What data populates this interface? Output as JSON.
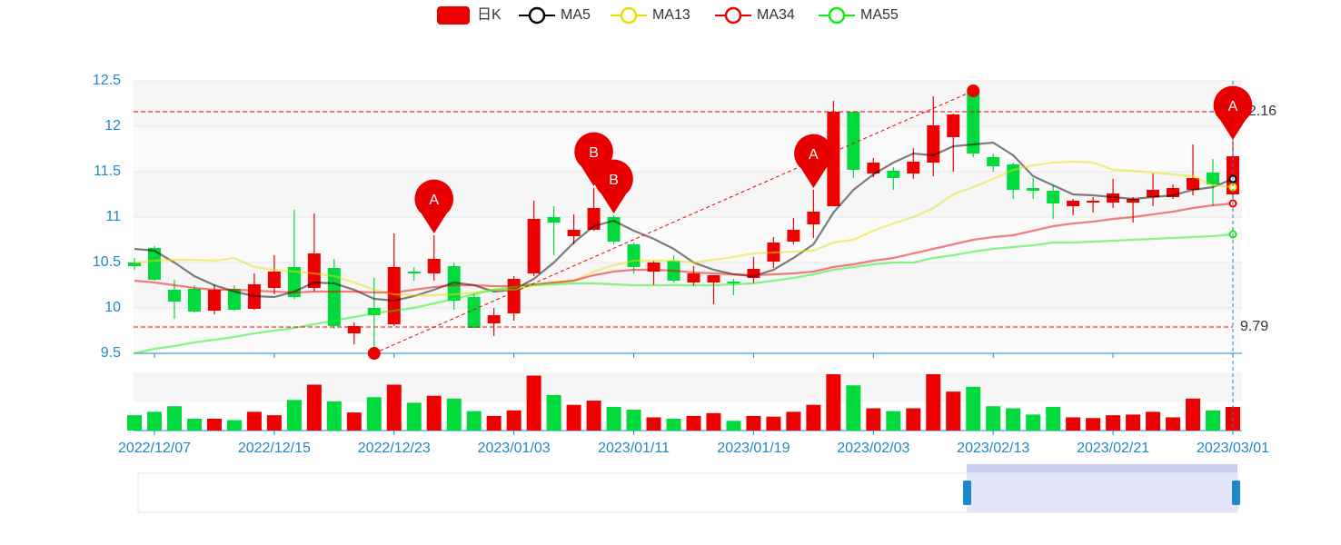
{
  "chart_data": {
    "type": "candlestick",
    "categories": [
      null,
      "2022/12/07",
      null,
      null,
      null,
      null,
      null,
      "2022/12/15",
      null,
      null,
      null,
      null,
      null,
      "2022/12/23",
      null,
      null,
      null,
      null,
      null,
      "2023/01/03",
      null,
      null,
      null,
      null,
      null,
      "2023/01/11",
      null,
      null,
      null,
      null,
      null,
      "2023/01/19",
      null,
      null,
      null,
      null,
      null,
      "2023/02/03",
      null,
      null,
      null,
      null,
      null,
      "2023/02/13",
      null,
      null,
      null,
      null,
      null,
      "2023/02/21",
      null,
      null,
      null,
      null,
      null,
      "2023/03/01"
    ],
    "candles": {
      "name": "日K",
      "up_color": "#ec0000",
      "down_color": "#00da3c",
      "open": [
        10.5,
        10.66,
        10.2,
        10.21,
        9.97,
        10.21,
        9.99,
        10.22,
        10.45,
        10.22,
        10.44,
        9.72,
        10.0,
        9.82,
        10.4,
        10.38,
        10.46,
        10.12,
        9.83,
        9.94,
        10.38,
        11.0,
        10.79,
        10.86,
        11.0,
        10.7,
        10.4,
        10.52,
        10.28,
        10.28,
        10.29,
        10.33,
        10.51,
        10.73,
        10.92,
        11.12,
        12.16,
        11.48,
        11.51,
        11.48,
        11.6,
        11.88,
        12.38,
        11.66,
        11.58,
        11.32,
        11.29,
        11.12,
        11.16,
        11.16,
        11.16,
        11.22,
        11.22,
        11.3,
        11.49,
        11.25
      ],
      "close": [
        10.46,
        10.31,
        10.07,
        9.96,
        10.2,
        9.98,
        10.26,
        10.4,
        10.12,
        10.6,
        9.8,
        9.8,
        9.92,
        10.45,
        10.38,
        10.54,
        10.08,
        9.78,
        9.92,
        10.32,
        10.98,
        10.94,
        10.86,
        11.1,
        10.73,
        10.45,
        10.5,
        10.3,
        10.38,
        10.36,
        10.27,
        10.43,
        10.72,
        10.86,
        11.06,
        12.16,
        11.52,
        11.6,
        11.43,
        11.61,
        12.01,
        12.13,
        11.7,
        11.56,
        11.3,
        11.29,
        11.15,
        11.18,
        11.18,
        11.26,
        11.2,
        11.3,
        11.32,
        11.43,
        11.36,
        11.67
      ],
      "low": [
        10.42,
        10.3,
        9.88,
        9.95,
        9.93,
        9.97,
        9.98,
        10.15,
        10.1,
        10.18,
        9.77,
        9.6,
        9.5,
        9.8,
        10.3,
        10.3,
        9.98,
        9.78,
        9.69,
        9.86,
        10.35,
        10.58,
        10.7,
        10.85,
        10.7,
        10.38,
        10.25,
        10.28,
        10.24,
        10.04,
        10.14,
        10.27,
        10.44,
        10.7,
        10.77,
        11.12,
        11.43,
        11.44,
        11.3,
        11.42,
        11.45,
        11.5,
        11.66,
        11.5,
        11.2,
        11.2,
        10.98,
        11.02,
        11.05,
        11.1,
        10.94,
        11.12,
        11.2,
        11.24,
        11.12,
        11.2
      ],
      "high": [
        10.55,
        10.68,
        10.31,
        10.25,
        10.26,
        10.25,
        10.38,
        10.58,
        11.08,
        11.04,
        10.54,
        9.84,
        10.33,
        10.82,
        10.45,
        10.8,
        10.5,
        10.16,
        10.0,
        10.35,
        11.18,
        11.12,
        11.03,
        11.32,
        11.02,
        10.72,
        10.52,
        10.58,
        10.46,
        10.36,
        10.32,
        10.56,
        10.78,
        10.99,
        11.3,
        12.28,
        12.16,
        11.65,
        11.55,
        11.76,
        12.33,
        12.14,
        12.39,
        11.7,
        11.6,
        11.43,
        11.35,
        11.2,
        11.22,
        11.42,
        11.22,
        11.48,
        11.36,
        11.8,
        11.64,
        11.83
      ]
    },
    "volume": [
      22,
      27,
      35,
      17,
      17,
      15,
      27,
      22,
      44,
      66,
      42,
      26,
      48,
      66,
      40,
      50,
      46,
      28,
      21,
      29,
      79,
      51,
      37,
      43,
      34,
      30,
      19,
      17,
      21,
      25,
      14,
      21,
      20,
      27,
      37,
      81,
      65,
      32,
      28,
      32,
      81,
      56,
      63,
      35,
      32,
      23,
      34,
      19,
      18,
      22,
      23,
      27,
      19,
      46,
      29,
      34
    ],
    "lines": [
      {
        "name": "MA5",
        "color": "#000000",
        "values": [
          10.65,
          10.63,
          10.5,
          10.35,
          10.25,
          10.18,
          10.13,
          10.12,
          10.18,
          10.28,
          10.27,
          10.2,
          10.1,
          10.08,
          10.13,
          10.2,
          10.28,
          10.25,
          10.18,
          10.2,
          10.32,
          10.5,
          10.72,
          10.9,
          10.96,
          10.85,
          10.76,
          10.65,
          10.5,
          10.42,
          10.37,
          10.35,
          10.42,
          10.55,
          10.7,
          11.05,
          11.3,
          11.47,
          11.6,
          11.7,
          11.68,
          11.78,
          11.8,
          11.82,
          11.68,
          11.45,
          11.35,
          11.25,
          11.24,
          11.22,
          11.2,
          11.22,
          11.24,
          11.3,
          11.33,
          11.42
        ]
      },
      {
        "name": "MA13",
        "color": "#e6e000",
        "values": [
          10.5,
          10.52,
          10.53,
          10.53,
          10.52,
          10.55,
          10.45,
          10.42,
          10.4,
          10.38,
          10.35,
          10.28,
          10.2,
          10.15,
          10.14,
          10.14,
          10.15,
          10.17,
          10.2,
          10.2,
          10.25,
          10.28,
          10.3,
          10.4,
          10.47,
          10.52,
          10.52,
          10.52,
          10.5,
          10.53,
          10.56,
          10.6,
          10.61,
          10.62,
          10.63,
          10.72,
          10.75,
          10.85,
          10.93,
          11.0,
          11.1,
          11.25,
          11.33,
          11.42,
          11.52,
          11.57,
          11.6,
          11.61,
          11.6,
          11.52,
          11.51,
          11.49,
          11.47,
          11.45,
          11.35,
          11.33
        ]
      },
      {
        "name": "MA34",
        "color": "#ec0000",
        "values": [
          10.3,
          10.28,
          10.25,
          10.22,
          10.2,
          10.2,
          10.19,
          10.18,
          10.17,
          10.18,
          10.18,
          10.18,
          10.17,
          10.17,
          10.2,
          10.23,
          10.25,
          10.25,
          10.24,
          10.24,
          10.26,
          10.28,
          10.3,
          10.36,
          10.4,
          10.42,
          10.42,
          10.41,
          10.39,
          10.38,
          10.37,
          10.36,
          10.37,
          10.38,
          10.4,
          10.45,
          10.48,
          10.52,
          10.55,
          10.6,
          10.65,
          10.7,
          10.75,
          10.78,
          10.8,
          10.85,
          10.9,
          10.93,
          10.95,
          10.98,
          11.0,
          11.03,
          11.06,
          11.1,
          11.13,
          11.15
        ]
      },
      {
        "name": "MA55",
        "color": "#11ee11",
        "values": [
          9.5,
          9.55,
          9.58,
          9.62,
          9.65,
          9.68,
          9.72,
          9.75,
          9.78,
          9.82,
          9.86,
          9.9,
          9.94,
          9.97,
          10.0,
          10.05,
          10.1,
          10.15,
          10.2,
          10.23,
          10.25,
          10.26,
          10.27,
          10.27,
          10.26,
          10.25,
          10.25,
          10.25,
          10.25,
          10.25,
          10.26,
          10.27,
          10.3,
          10.33,
          10.37,
          10.42,
          10.45,
          10.48,
          10.5,
          10.5,
          10.55,
          10.58,
          10.62,
          10.65,
          10.67,
          10.69,
          10.72,
          10.72,
          10.73,
          10.74,
          10.75,
          10.76,
          10.77,
          10.78,
          10.79,
          10.81
        ]
      }
    ],
    "ylim": [
      9.5,
      12.5
    ],
    "yticks": [
      9.5,
      10,
      10.5,
      11,
      11.5,
      12,
      12.5
    ],
    "mark_lines": [
      12.16,
      9.79
    ],
    "mark_points": [
      {
        "label": "A",
        "index": 15
      },
      {
        "label": "B",
        "index": 23
      },
      {
        "label": "B",
        "index": 24
      },
      {
        "label": "A",
        "index": 34
      },
      {
        "label": "A",
        "index": 55
      }
    ],
    "trend_line": {
      "from": [
        12,
        9.5
      ],
      "to": [
        42,
        12.39
      ]
    }
  }
}
